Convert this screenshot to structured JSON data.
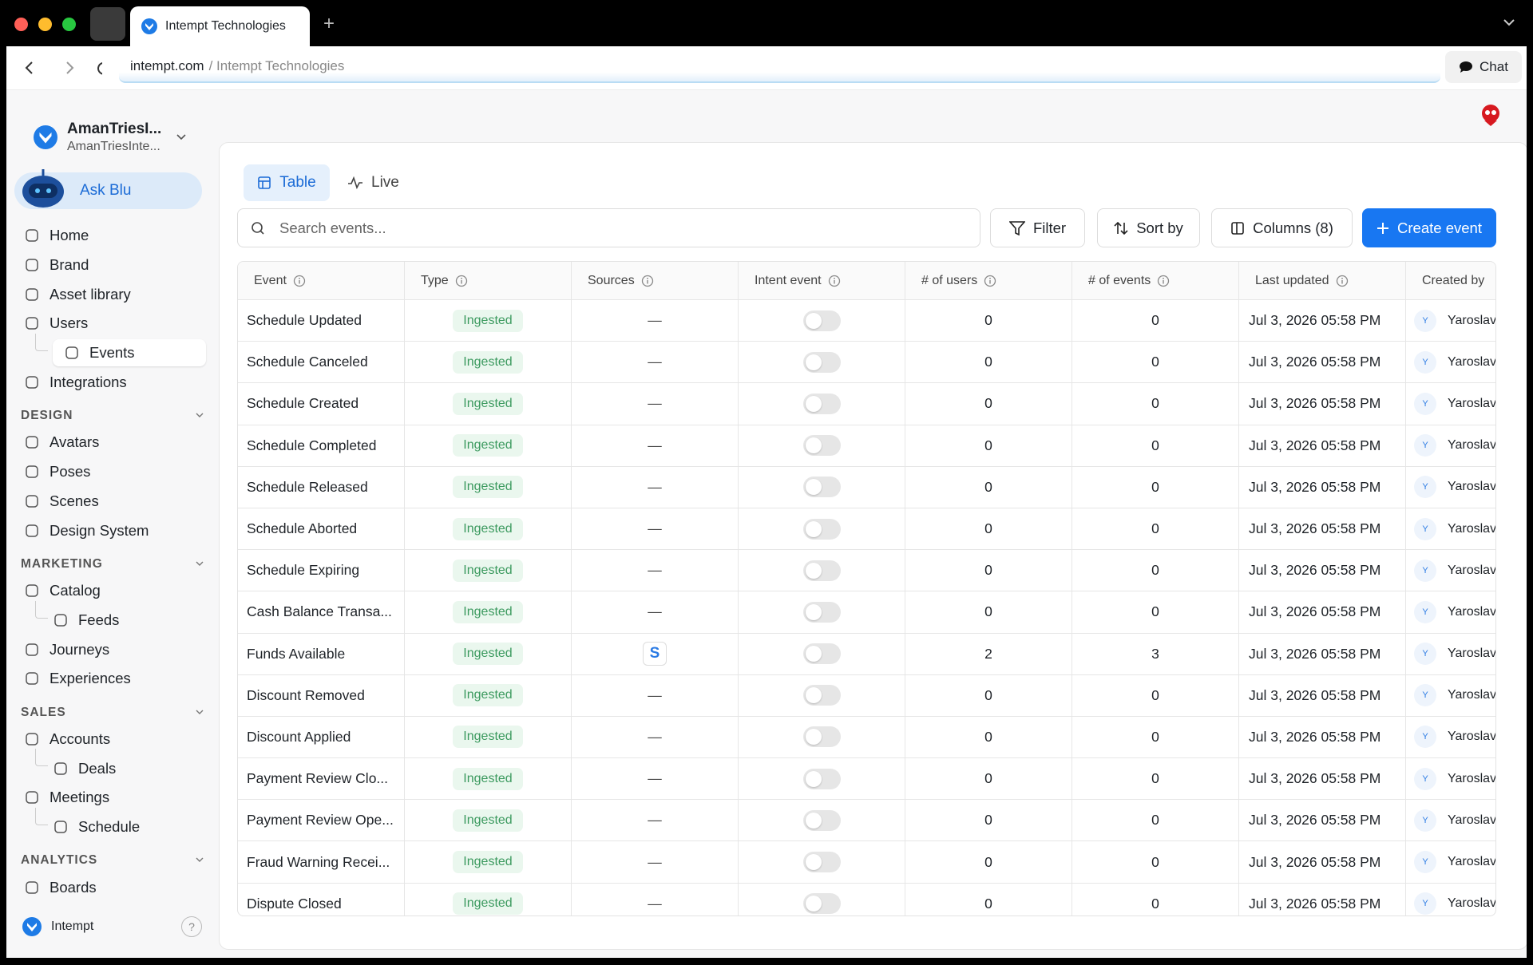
{
  "browser": {
    "tab_title": "Intempt Technologies",
    "url_domain": "intempt.com",
    "url_path": "/ Intempt Technologies",
    "chat": "Chat"
  },
  "workspace": {
    "name": "AmanTriesI...",
    "subtitle": "AmanTriesInte..."
  },
  "ask_blu": "Ask Blu",
  "nav": [
    {
      "items": [
        {
          "label": "Home"
        },
        {
          "label": "Brand"
        },
        {
          "label": "Asset library"
        },
        {
          "label": "Users"
        },
        {
          "label": "Events",
          "sub": true,
          "active": true
        },
        {
          "label": "Integrations"
        }
      ]
    },
    {
      "heading": "DESIGN",
      "items": [
        {
          "label": "Avatars"
        },
        {
          "label": "Poses"
        },
        {
          "label": "Scenes"
        },
        {
          "label": "Design System"
        }
      ]
    },
    {
      "heading": "MARKETING",
      "items": [
        {
          "label": "Catalog"
        },
        {
          "label": "Feeds",
          "sub": true
        },
        {
          "label": "Journeys"
        },
        {
          "label": "Experiences"
        }
      ]
    },
    {
      "heading": "SALES",
      "items": [
        {
          "label": "Accounts"
        },
        {
          "label": "Deals",
          "sub": true
        },
        {
          "label": "Meetings"
        },
        {
          "label": "Schedule",
          "sub": true
        }
      ]
    },
    {
      "heading": "ANALYTICS",
      "items": [
        {
          "label": "Boards"
        }
      ]
    }
  ],
  "footer": {
    "brand": "Intempt",
    "help": "?"
  },
  "tabs": [
    "Table",
    "Live"
  ],
  "search_placeholder": "Search events...",
  "buttons": {
    "filter": "Filter",
    "sort": "Sort by",
    "columns": "Columns (8)",
    "create": "Create event"
  },
  "table": {
    "columns": [
      "Event",
      "Type",
      "Sources",
      "Intent event",
      "# of users",
      "# of events",
      "Last updated",
      "Created by"
    ],
    "rows": [
      [
        "Schedule Updated",
        "Ingested",
        "—",
        0,
        0,
        "Jul 3, 2026 05:58 PM",
        "Y",
        "Yaroslav"
      ],
      [
        "Schedule Canceled",
        "Ingested",
        "—",
        0,
        0,
        "Jul 3, 2026 05:58 PM",
        "Y",
        "Yaroslav"
      ],
      [
        "Schedule Created",
        "Ingested",
        "—",
        0,
        0,
        "Jul 3, 2026 05:58 PM",
        "Y",
        "Yaroslav"
      ],
      [
        "Schedule Completed",
        "Ingested",
        "—",
        0,
        0,
        "Jul 3, 2026 05:58 PM",
        "Y",
        "Yaroslav"
      ],
      [
        "Schedule Released",
        "Ingested",
        "—",
        0,
        0,
        "Jul 3, 2026 05:58 PM",
        "Y",
        "Yaroslav"
      ],
      [
        "Schedule Aborted",
        "Ingested",
        "—",
        0,
        0,
        "Jul 3, 2026 05:58 PM",
        "Y",
        "Yaroslav"
      ],
      [
        "Schedule Expiring",
        "Ingested",
        "—",
        0,
        0,
        "Jul 3, 2026 05:58 PM",
        "Y",
        "Yaroslav"
      ],
      [
        "Cash Balance Transa...",
        "Ingested",
        "—",
        0,
        0,
        "Jul 3, 2026 05:58 PM",
        "Y",
        "Yaroslav"
      ],
      [
        "Funds Available",
        "Ingested",
        "S",
        2,
        3,
        "Jul 3, 2026 05:58 PM",
        "Y",
        "Yaroslav"
      ],
      [
        "Discount Removed",
        "Ingested",
        "—",
        0,
        0,
        "Jul 3, 2026 05:58 PM",
        "Y",
        "Yaroslav"
      ],
      [
        "Discount Applied",
        "Ingested",
        "—",
        0,
        0,
        "Jul 3, 2026 05:58 PM",
        "Y",
        "Yaroslav"
      ],
      [
        "Payment Review Clo...",
        "Ingested",
        "—",
        0,
        0,
        "Jul 3, 2026 05:58 PM",
        "Y",
        "Yaroslav"
      ],
      [
        "Payment Review Ope...",
        "Ingested",
        "—",
        0,
        0,
        "Jul 3, 2026 05:58 PM",
        "Y",
        "Yaroslav"
      ],
      [
        "Fraud Warning Recei...",
        "Ingested",
        "—",
        0,
        0,
        "Jul 3, 2026 05:58 PM",
        "Y",
        "Yaroslav"
      ],
      [
        "Dispute Closed",
        "Ingested",
        "—",
        0,
        0,
        "Jul 3, 2026 05:58 PM",
        "Y",
        "Yaroslav"
      ]
    ]
  }
}
